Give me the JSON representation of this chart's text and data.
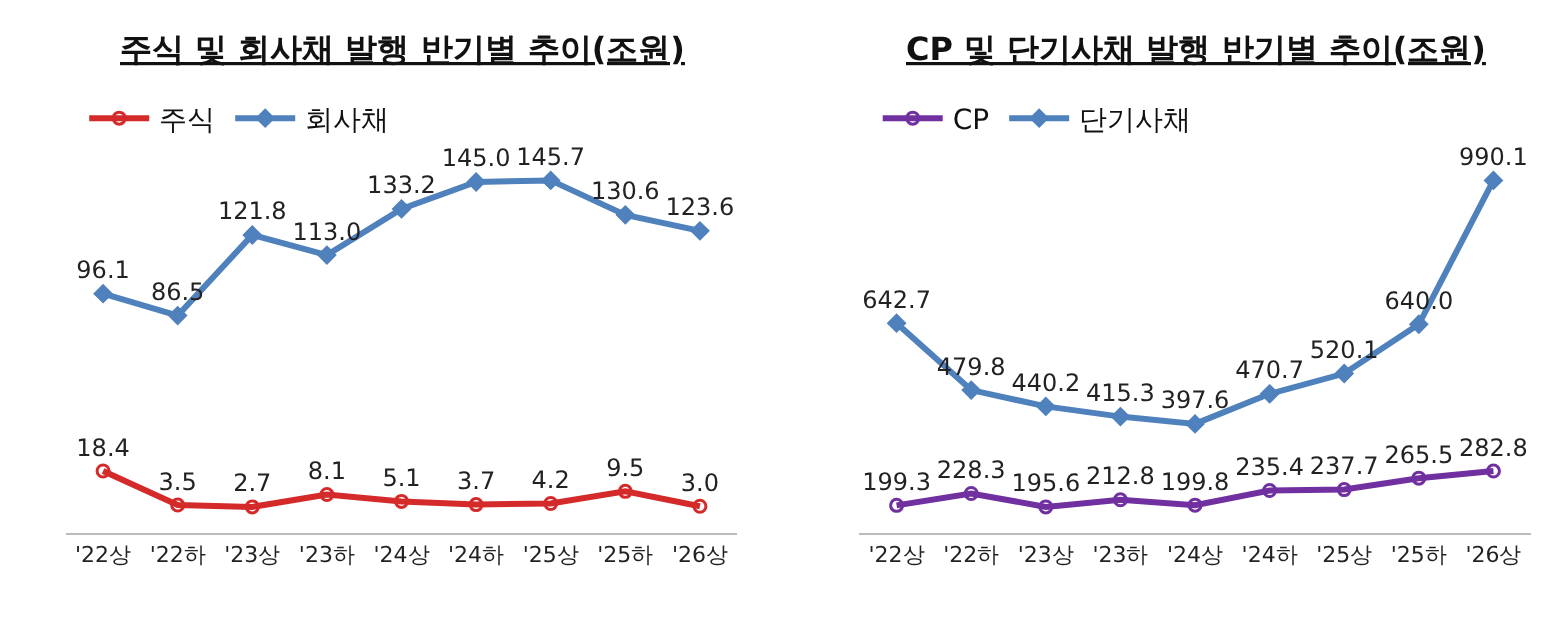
{
  "chart_data": [
    {
      "type": "line",
      "title": "주식 및 회사채 발행 반기별 추이(조원)",
      "categories": [
        "'22상",
        "'22하",
        "'23상",
        "'23하",
        "'24상",
        "'24하",
        "'25상",
        "'25하",
        "'26상"
      ],
      "series": [
        {
          "name": "주식",
          "color": "#d42a2a",
          "marker": "circle",
          "values": [
            18.4,
            3.5,
            2.7,
            8.1,
            5.1,
            3.7,
            4.2,
            9.5,
            3.0
          ],
          "value_labels": [
            "18.4",
            "3.5",
            "2.7",
            "8.1",
            "5.1",
            "3.7",
            "4.2",
            "9.5",
            "3.0"
          ]
        },
        {
          "name": "회사채",
          "color": "#4f81bd",
          "marker": "diamond",
          "values": [
            96.1,
            86.5,
            121.8,
            113.0,
            133.2,
            145.0,
            145.7,
            130.6,
            123.6
          ],
          "value_labels": [
            "96.1",
            "86.5",
            "121.8",
            "113.0",
            "133.2",
            "145.0",
            "145.7",
            "130.6",
            "123.6"
          ]
        }
      ],
      "legend": "top left"
    },
    {
      "type": "line",
      "title": "CP 및 단기사채 발행 반기별 추이(조원)",
      "categories": [
        "'22상",
        "'22하",
        "'23상",
        "'23하",
        "'24상",
        "'24하",
        "'25상",
        "'25하",
        "'26상"
      ],
      "series": [
        {
          "name": "CP",
          "color": "#7030a0",
          "marker": "circle",
          "values": [
            199.3,
            228.3,
            195.6,
            212.8,
            199.8,
            235.4,
            237.7,
            265.5,
            282.8
          ],
          "value_labels": [
            "199.3",
            "228.3",
            "195.6",
            "212.8",
            "199.8",
            "235.4",
            "237.7",
            "265.5",
            "282.8"
          ]
        },
        {
          "name": "단기사채",
          "color": "#4f81bd",
          "marker": "diamond",
          "values": [
            642.7,
            479.8,
            440.2,
            415.3,
            397.6,
            470.7,
            520.1,
            640.0,
            990.1
          ],
          "value_labels": [
            "642.7",
            "479.8",
            "440.2",
            "415.3",
            "397.6",
            "470.7",
            "520.1",
            "640.0",
            "990.1"
          ]
        }
      ],
      "legend": "top left"
    }
  ]
}
